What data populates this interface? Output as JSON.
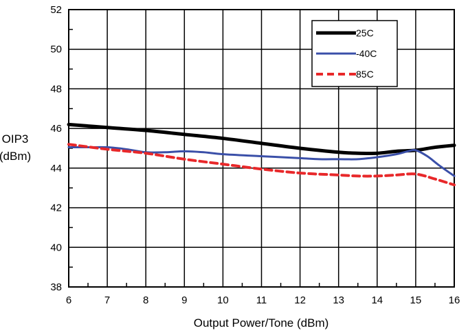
{
  "chart_data": {
    "type": "line",
    "title": "",
    "xlabel": "Output Power/Tone (dBm)",
    "ylabel_lines": [
      "OIP3",
      "(dBm)"
    ],
    "xlim": [
      6,
      16
    ],
    "ylim": [
      38,
      52
    ],
    "x_ticks": [
      6,
      7,
      8,
      9,
      10,
      11,
      12,
      13,
      14,
      15,
      16
    ],
    "y_ticks": [
      38,
      40,
      42,
      44,
      46,
      48,
      50,
      52
    ],
    "grid": true,
    "legend_position": "top-right",
    "series": [
      {
        "name": "25C",
        "color": "#000000",
        "dashed": false,
        "width": 5,
        "x": [
          6,
          7,
          8,
          9,
          10,
          11,
          12,
          13,
          13.5,
          14,
          14.5,
          15,
          15.5,
          16
        ],
        "y": [
          46.2,
          46.05,
          45.9,
          45.7,
          45.5,
          45.25,
          45.0,
          44.8,
          44.75,
          44.75,
          44.85,
          44.9,
          45.05,
          45.15
        ]
      },
      {
        "name": "-40C",
        "color": "#3a4fa8",
        "dashed": false,
        "width": 3,
        "x": [
          6,
          6.5,
          7,
          7.5,
          8,
          8.5,
          9,
          9.5,
          10,
          11,
          12,
          12.5,
          13,
          13.5,
          14,
          14.5,
          14.8,
          15,
          15.3,
          15.6,
          16
        ],
        "y": [
          45.05,
          45.05,
          45.05,
          44.95,
          44.8,
          44.8,
          44.85,
          44.8,
          44.7,
          44.6,
          44.5,
          44.45,
          44.45,
          44.45,
          44.55,
          44.7,
          44.85,
          44.9,
          44.6,
          44.15,
          43.6
        ]
      },
      {
        "name": "85C",
        "color": "#e8282a",
        "dashed": true,
        "width": 4,
        "x": [
          6,
          7,
          8,
          9,
          10,
          11,
          12,
          13,
          13.5,
          14,
          14.5,
          15,
          15.5,
          16
        ],
        "y": [
          45.2,
          44.95,
          44.75,
          44.45,
          44.2,
          43.95,
          43.75,
          43.65,
          43.6,
          43.6,
          43.65,
          43.7,
          43.45,
          43.15
        ]
      }
    ]
  }
}
